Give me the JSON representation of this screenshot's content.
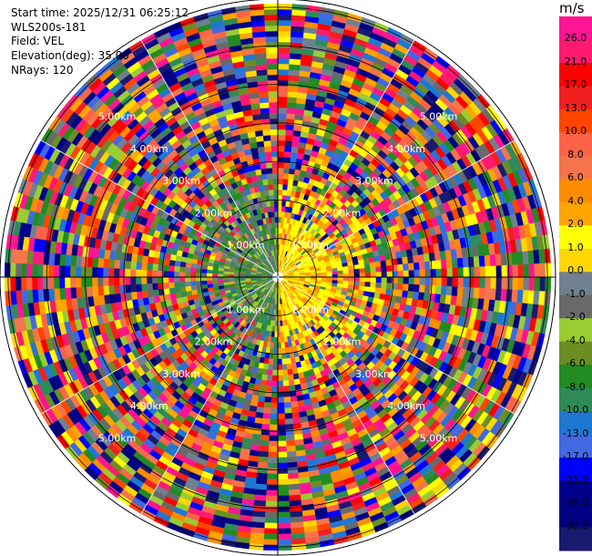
{
  "info": {
    "start_time": "Start time: 2025/12/31 06:25:12",
    "instrument": "WLS200s-181",
    "field": "Field: VEL",
    "elevation": "Elevation(deg): 35.00",
    "nrays": "NRays: 120"
  },
  "chart_data": {
    "type": "heatmap",
    "projection": "polar-ppi",
    "field": "VEL",
    "units": "m/s",
    "n_rays": 120,
    "range_rings_km": [
      "1.00km",
      "2.00km",
      "3.00km",
      "4.00km",
      "5.00km"
    ],
    "colorbar": {
      "ticks": [
        "26.0",
        "21.0",
        "17.0",
        "13.0",
        "10.0",
        "8.0",
        "6.0",
        "4.0",
        "2.0",
        "1.0",
        "0.0",
        "-1.0",
        "-2.0",
        "-4.0",
        "-6.0",
        "-8.0",
        "-10.0",
        "-13.0",
        "-17.0",
        "-21.0",
        "-26.0",
        "-30.0"
      ],
      "colors": [
        "#ff1493",
        "#ff1a6e",
        "#ff0000",
        "#f02020",
        "#ff4500",
        "#ff6347",
        "#f5744a",
        "#ff8c00",
        "#ffa500",
        "#ffff00",
        "#ffd700",
        "#708090",
        "#696969",
        "#9acd32",
        "#6b8e23",
        "#228b22",
        "#2e8b57",
        "#1e78d2",
        "#4169e1",
        "#0000ff",
        "#00008b",
        "#000080",
        "#191970"
      ]
    },
    "near_field_pattern": "west of center green/olive (negative velocity), east of center yellow/orange (positive velocity); beyond ~1.5 km noisy multicolor returns"
  }
}
